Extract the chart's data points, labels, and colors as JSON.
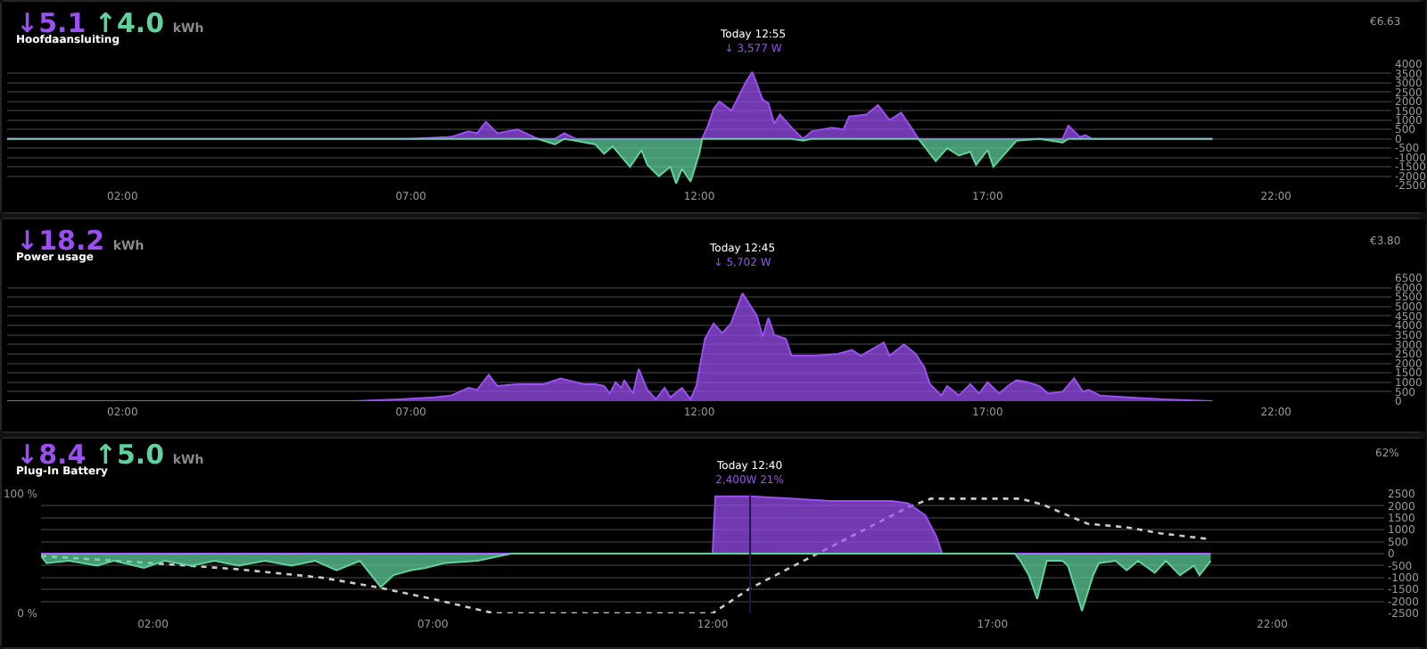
{
  "chart_data": [
    {
      "type": "area",
      "title": "Hoofdaansluiting",
      "grid": "y",
      "annotations": [
        "↓5.1",
        "↑4.0",
        "kWh",
        "€6.63",
        {
          "text": "Today 12:55\n↓ 3,577 W",
          "x": 12.92,
          "y": 3577
        }
      ],
      "x": [
        0,
        1,
        2,
        3,
        4,
        5,
        6,
        7,
        7.7,
        8,
        8.15,
        8.3,
        8.5,
        8.85,
        9.2,
        9.5,
        9.66,
        9.85,
        10.2,
        10.35,
        10.5,
        10.8,
        11,
        11.1,
        11.3,
        11.5,
        11.6,
        11.7,
        11.85,
        12,
        12.05,
        12.15,
        12.25,
        12.35,
        12.56,
        12.8,
        12.92,
        13.1,
        13.2,
        13.3,
        13.4,
        13.6,
        13.8,
        13.95,
        14.3,
        14.5,
        14.6,
        14.9,
        15.1,
        15.3,
        15.5,
        15.7,
        15.8,
        16.1,
        16.3,
        16.5,
        16.7,
        16.8,
        17,
        17.1,
        17.3,
        17.5,
        17.9,
        18.1,
        18.3,
        18.4,
        18.6,
        18.7,
        18.8,
        19.5,
        20.2,
        20.9
      ],
      "series": [
        {
          "color": "#9b4ff2",
          "values": [
            0,
            0,
            0,
            0,
            0,
            0,
            0,
            0,
            100,
            400,
            300,
            900,
            300,
            500,
            0,
            0,
            300,
            0,
            0,
            0,
            0,
            0,
            0,
            0,
            0,
            0,
            0,
            0,
            0,
            0,
            0,
            700,
            1600,
            2000,
            1500,
            3000,
            3577,
            2100,
            1900,
            800,
            1300,
            600,
            0,
            400,
            600,
            500,
            1200,
            1300,
            1800,
            1000,
            1400,
            500,
            0,
            0,
            0,
            0,
            0,
            0,
            0,
            0,
            0,
            0,
            0,
            0,
            0,
            700,
            100,
            200,
            0,
            0,
            0,
            0
          ]
        },
        {
          "color": "#5fd39c",
          "values": [
            0,
            0,
            0,
            0,
            0,
            0,
            0,
            0,
            0,
            0,
            0,
            0,
            0,
            0,
            0,
            -300,
            0,
            -100,
            -300,
            -800,
            -400,
            -1500,
            -600,
            -1400,
            -2000,
            -1500,
            -2400,
            -1600,
            -2300,
            -800,
            0,
            0,
            0,
            0,
            0,
            0,
            0,
            0,
            0,
            0,
            0,
            0,
            -100,
            0,
            0,
            0,
            0,
            0,
            0,
            0,
            0,
            0,
            0,
            -1200,
            -500,
            -900,
            -700,
            -1400,
            -600,
            -1500,
            -800,
            -100,
            0,
            -100,
            -200,
            0,
            0,
            0,
            0,
            0,
            0,
            0
          ]
        }
      ],
      "xlim": [
        0,
        24
      ],
      "xticks": [
        {
          "value": 2,
          "label": "02:00"
        },
        {
          "value": 7,
          "label": "07:00"
        },
        {
          "value": 12,
          "label": "12:00"
        },
        {
          "value": 17,
          "label": "17:00"
        },
        {
          "value": 22,
          "label": "22:00"
        }
      ],
      "ylim": [
        -2500,
        4000
      ],
      "yticks": [
        4000,
        3500,
        3000,
        2500,
        2000,
        1500,
        1000,
        500,
        0,
        -500,
        -1000,
        -1500,
        -2000,
        -2500
      ]
    },
    {
      "type": "area",
      "title": "Power usage",
      "grid": "y",
      "annotations": [
        "↓18.2",
        "kWh",
        "€3.80",
        {
          "text": "Today 12:45\n↓ 5,702 W",
          "x": 12.75,
          "y": 5702
        }
      ],
      "x": [
        0,
        2,
        4,
        6,
        6.8,
        7.4,
        7.7,
        8,
        8.15,
        8.35,
        8.5,
        8.85,
        9.3,
        9.6,
        10,
        10.2,
        10.35,
        10.45,
        10.55,
        10.65,
        10.7,
        10.85,
        10.95,
        11.1,
        11.25,
        11.4,
        11.5,
        11.7,
        11.85,
        11.95,
        12.1,
        12.25,
        12.4,
        12.55,
        12.75,
        13,
        13.1,
        13.2,
        13.3,
        13.5,
        13.6,
        14,
        14.4,
        14.65,
        14.8,
        15.2,
        15.3,
        15.55,
        15.75,
        15.9,
        16,
        16.2,
        16.3,
        16.5,
        16.7,
        16.85,
        17,
        17.2,
        17.35,
        17.5,
        17.7,
        17.9,
        18.05,
        18.3,
        18.5,
        18.65,
        18.75,
        18.95,
        19.45,
        20.05,
        20.9
      ],
      "series": [
        {
          "color": "#9b4ff2",
          "values": [
            0,
            0,
            0,
            0,
            100,
            200,
            300,
            700,
            600,
            1400,
            800,
            900,
            900,
            1200,
            900,
            900,
            800,
            400,
            1000,
            700,
            1100,
            400,
            1700,
            600,
            100,
            700,
            200,
            700,
            100,
            800,
            3300,
            4100,
            3600,
            4100,
            5702,
            4500,
            3400,
            4400,
            3500,
            3300,
            2400,
            2400,
            2500,
            2700,
            2400,
            3100,
            2400,
            3000,
            2500,
            1800,
            900,
            300,
            800,
            300,
            900,
            400,
            1000,
            400,
            800,
            1100,
            1000,
            800,
            400,
            500,
            1200,
            500,
            600,
            300,
            200,
            100,
            0
          ]
        }
      ],
      "xlim": [
        0,
        24
      ],
      "xticks": [
        {
          "value": 2,
          "label": "02:00"
        },
        {
          "value": 7,
          "label": "07:00"
        },
        {
          "value": 12,
          "label": "12:00"
        },
        {
          "value": 17,
          "label": "17:00"
        },
        {
          "value": 22,
          "label": "22:00"
        }
      ],
      "ylim": [
        0,
        6500
      ],
      "yticks": [
        6500,
        6000,
        5500,
        5000,
        4500,
        4000,
        3500,
        3000,
        2500,
        2000,
        1500,
        1000,
        500,
        0
      ]
    },
    {
      "type": "area",
      "title": "Plug-In Battery",
      "grid": "y",
      "annotations": [
        "↓8.4",
        "↑5.0",
        "kWh",
        "62%",
        "Today 12:40\n2,400W 21%"
      ],
      "ref_lines": [
        {
          "axis": "x",
          "value": 12.67,
          "color": "#2a1050"
        }
      ],
      "x": [
        0,
        0.1,
        0.5,
        1,
        1.3,
        1.84,
        2.2,
        2.69,
        3.1,
        3.53,
        4,
        4.47,
        4.9,
        5.28,
        5.7,
        6.07,
        6.3,
        6.6,
        6.87,
        7.2,
        7.8,
        8.4,
        10,
        12,
        12.05,
        12.67,
        13.4,
        14.1,
        15.2,
        15.5,
        15.8,
        16,
        16.1,
        17,
        17.4,
        17.5,
        17.65,
        17.8,
        17.97,
        18.25,
        18.35,
        18.6,
        18.8,
        18.9,
        19.2,
        19.4,
        19.6,
        19.9,
        20.1,
        20.35,
        20.6,
        20.7,
        20.9
      ],
      "series": [
        {
          "color": "#9b4ff2",
          "axis": "y2",
          "values": [
            0,
            0,
            0,
            0,
            0,
            0,
            0,
            0,
            0,
            0,
            0,
            0,
            0,
            0,
            0,
            0,
            0,
            0,
            0,
            0,
            0,
            0,
            0,
            0,
            2400,
            2400,
            2300,
            2200,
            2200,
            2100,
            1600,
            700,
            0,
            0,
            0,
            0,
            0,
            0,
            0,
            0,
            0,
            0,
            0,
            0,
            0,
            0,
            0,
            0,
            0,
            0,
            0,
            0,
            0
          ]
        },
        {
          "color": "#5fd39c",
          "axis": "y2",
          "values": [
            -100,
            -400,
            -300,
            -500,
            -300,
            -600,
            -300,
            -500,
            -300,
            -500,
            -300,
            -500,
            -300,
            -700,
            -300,
            -1400,
            -900,
            -700,
            -600,
            -400,
            -300,
            0,
            0,
            0,
            0,
            0,
            0,
            0,
            0,
            0,
            0,
            0,
            0,
            0,
            0,
            -300,
            -900,
            -1900,
            -300,
            -300,
            -500,
            -2400,
            -900,
            -400,
            -300,
            -700,
            -300,
            -800,
            -300,
            -900,
            -500,
            -900,
            -300
          ]
        },
        {
          "type": "line",
          "color": "#cccccc",
          "line_style": "dotted",
          "axis": "y",
          "x": [
            0,
            2,
            3.5,
            5,
            6,
            7,
            8.1,
            12,
            12.67,
            15.5,
            15.9,
            17.5,
            17.9,
            18.7,
            19.4,
            20,
            20.9
          ],
          "values": [
            48,
            42,
            37,
            30,
            22,
            12,
            0,
            0,
            21,
            89,
            96,
            96,
            91,
            75,
            72,
            67,
            62
          ]
        }
      ],
      "xlim": [
        0,
        24
      ],
      "xticks": [
        {
          "value": 2,
          "label": "02:00"
        },
        {
          "value": 7,
          "label": "07:00"
        },
        {
          "value": 12,
          "label": "12:00"
        },
        {
          "value": 17,
          "label": "17:00"
        },
        {
          "value": 22,
          "label": "22:00"
        }
      ],
      "ylim": [
        0,
        100
      ],
      "yticks": [
        {
          "value": 100,
          "label": "100 %"
        },
        {
          "value": 0,
          "label": "0 %"
        }
      ],
      "y2lim": [
        -2500,
        2500
      ],
      "y2ticks": [
        2500,
        2000,
        1500,
        1000,
        500,
        0,
        -500,
        -1000,
        -1500,
        -2000,
        -2500
      ]
    }
  ]
}
